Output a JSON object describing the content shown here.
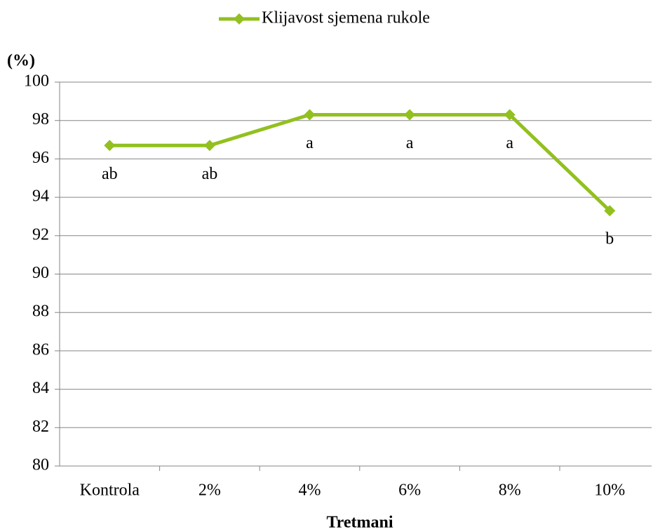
{
  "chart_data": {
    "type": "line",
    "legend_position": "top",
    "ylabel": "(%)",
    "xlabel": "Tretmani",
    "categories": [
      "Kontrola",
      "2%",
      "4%",
      "6%",
      "8%",
      "10%"
    ],
    "series": [
      {
        "name": "Klijavost sjemena rukole",
        "color": "#92c01f",
        "values": [
          96.7,
          96.7,
          98.3,
          98.3,
          98.3,
          93.3
        ],
        "annotations": [
          "ab",
          "ab",
          "a",
          "a",
          "a",
          "b"
        ]
      }
    ],
    "ylim": [
      80,
      100
    ],
    "yticks": [
      80,
      82,
      84,
      86,
      88,
      90,
      92,
      94,
      96,
      98,
      100
    ],
    "grid": true
  }
}
